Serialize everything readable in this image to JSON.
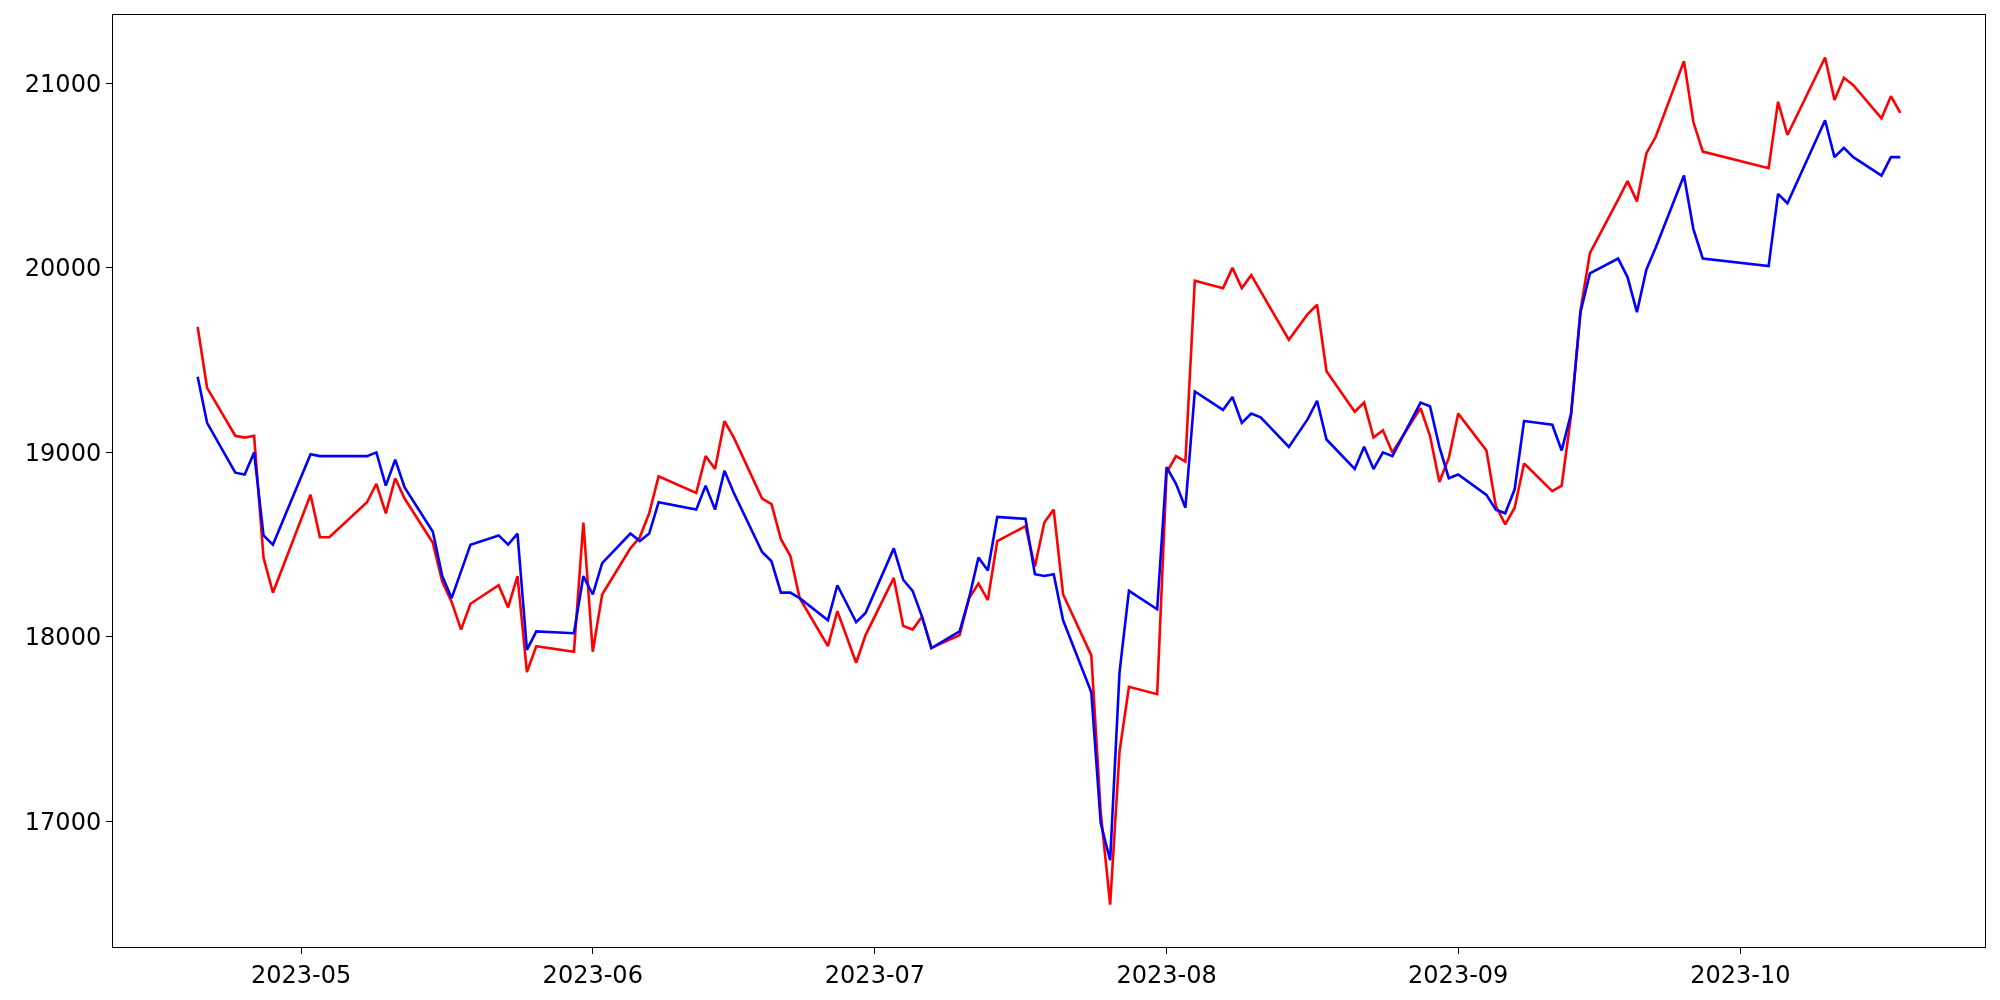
{
  "chart_data": {
    "type": "line",
    "xlim": [
      "2023-04-11",
      "2023-10-27"
    ],
    "xticks": [
      {
        "value": "2023-05-01",
        "label": "2023-05"
      },
      {
        "value": "2023-06-01",
        "label": "2023-06"
      },
      {
        "value": "2023-07-01",
        "label": "2023-07"
      },
      {
        "value": "2023-08-01",
        "label": "2023-08"
      },
      {
        "value": "2023-09-01",
        "label": "2023-09"
      },
      {
        "value": "2023-10-01",
        "label": "2023-10"
      }
    ],
    "ylim": [
      16320,
      21370
    ],
    "yticks": [
      17000,
      18000,
      19000,
      20000,
      21000
    ],
    "line_style": "solid",
    "series": [
      {
        "color": "#ff0000",
        "x": [
          "2023-04-20",
          "2023-04-21",
          "2023-04-24",
          "2023-04-25",
          "2023-04-26",
          "2023-04-27",
          "2023-04-28",
          "2023-05-02",
          "2023-05-03",
          "2023-05-04",
          "2023-05-08",
          "2023-05-09",
          "2023-05-10",
          "2023-05-11",
          "2023-05-12",
          "2023-05-15",
          "2023-05-16",
          "2023-05-17",
          "2023-05-18",
          "2023-05-19",
          "2023-05-22",
          "2023-05-23",
          "2023-05-24",
          "2023-05-25",
          "2023-05-26",
          "2023-05-30",
          "2023-05-31",
          "2023-06-01",
          "2023-06-02",
          "2023-06-05",
          "2023-06-06",
          "2023-06-07",
          "2023-06-08",
          "2023-06-12",
          "2023-06-13",
          "2023-06-14",
          "2023-06-15",
          "2023-06-16",
          "2023-06-19",
          "2023-06-20",
          "2023-06-21",
          "2023-06-22",
          "2023-06-23",
          "2023-06-26",
          "2023-06-27",
          "2023-06-29",
          "2023-06-30",
          "2023-07-03",
          "2023-07-04",
          "2023-07-05",
          "2023-07-06",
          "2023-07-07",
          "2023-07-10",
          "2023-07-11",
          "2023-07-12",
          "2023-07-13",
          "2023-07-14",
          "2023-07-17",
          "2023-07-18",
          "2023-07-19",
          "2023-07-20",
          "2023-07-21",
          "2023-07-24",
          "2023-07-25",
          "2023-07-26",
          "2023-07-27",
          "2023-07-28",
          "2023-07-31",
          "2023-08-01",
          "2023-08-02",
          "2023-08-03",
          "2023-08-04",
          "2023-08-07",
          "2023-08-08",
          "2023-08-09",
          "2023-08-10",
          "2023-08-14",
          "2023-08-16",
          "2023-08-17",
          "2023-08-18",
          "2023-08-21",
          "2023-08-22",
          "2023-08-23",
          "2023-08-24",
          "2023-08-25",
          "2023-08-28",
          "2023-08-29",
          "2023-08-30",
          "2023-08-31",
          "2023-09-01",
          "2023-09-04",
          "2023-09-05",
          "2023-09-06",
          "2023-09-07",
          "2023-09-08",
          "2023-09-11",
          "2023-09-12",
          "2023-09-13",
          "2023-09-14",
          "2023-09-15",
          "2023-09-18",
          "2023-09-19",
          "2023-09-20",
          "2023-09-21",
          "2023-09-22",
          "2023-09-25",
          "2023-09-26",
          "2023-09-27",
          "2023-10-04",
          "2023-10-05",
          "2023-10-06",
          "2023-10-10",
          "2023-10-11",
          "2023-10-12",
          "2023-10-13",
          "2023-10-16",
          "2023-10-17",
          "2023-10-18"
        ],
        "values": [
          19680,
          19350,
          19090,
          19080,
          19090,
          18430,
          18240,
          18770,
          18540,
          18540,
          18730,
          18830,
          18670,
          18860,
          18750,
          18510,
          18300,
          18190,
          18040,
          18180,
          18280,
          18160,
          18330,
          17810,
          17950,
          17920,
          18620,
          17920,
          18230,
          18480,
          18540,
          18670,
          18870,
          18780,
          18980,
          18910,
          19170,
          19080,
          18750,
          18720,
          18530,
          18440,
          18210,
          17950,
          18140,
          17860,
          18010,
          18320,
          18060,
          18040,
          18110,
          17940,
          18010,
          18210,
          18290,
          18200,
          18520,
          18600,
          18380,
          18620,
          18690,
          18230,
          17900,
          17050,
          16550,
          17380,
          17730,
          17690,
          18890,
          18980,
          18950,
          19930,
          19890,
          20000,
          19890,
          19960,
          19610,
          19750,
          19800,
          19440,
          19220,
          19270,
          19080,
          19120,
          19000,
          19240,
          19090,
          18840,
          18970,
          19210,
          19010,
          18710,
          18610,
          18700,
          18940,
          18790,
          18820,
          19200,
          19770,
          20080,
          20370,
          20470,
          20360,
          20620,
          20710,
          21120,
          20790,
          20630,
          20540,
          20900,
          20720,
          21140,
          20910,
          21030,
          20990,
          20810,
          20930,
          20840
        ]
      },
      {
        "color": "#0000ff",
        "x": [
          "2023-04-20",
          "2023-04-21",
          "2023-04-24",
          "2023-04-25",
          "2023-04-26",
          "2023-04-27",
          "2023-04-28",
          "2023-05-02",
          "2023-05-03",
          "2023-05-04",
          "2023-05-08",
          "2023-05-09",
          "2023-05-10",
          "2023-05-11",
          "2023-05-12",
          "2023-05-15",
          "2023-05-16",
          "2023-05-17",
          "2023-05-19",
          "2023-05-22",
          "2023-05-23",
          "2023-05-24",
          "2023-05-25",
          "2023-05-26",
          "2023-05-30",
          "2023-05-31",
          "2023-06-01",
          "2023-06-02",
          "2023-06-05",
          "2023-06-06",
          "2023-06-07",
          "2023-06-08",
          "2023-06-12",
          "2023-06-13",
          "2023-06-14",
          "2023-06-15",
          "2023-06-16",
          "2023-06-19",
          "2023-06-20",
          "2023-06-21",
          "2023-06-22",
          "2023-06-23",
          "2023-06-26",
          "2023-06-27",
          "2023-06-29",
          "2023-06-30",
          "2023-07-03",
          "2023-07-04",
          "2023-07-05",
          "2023-07-06",
          "2023-07-07",
          "2023-07-10",
          "2023-07-11",
          "2023-07-12",
          "2023-07-13",
          "2023-07-14",
          "2023-07-17",
          "2023-07-18",
          "2023-07-19",
          "2023-07-20",
          "2023-07-21",
          "2023-07-24",
          "2023-07-25",
          "2023-07-26",
          "2023-07-27",
          "2023-07-28",
          "2023-07-31",
          "2023-08-01",
          "2023-08-02",
          "2023-08-03",
          "2023-08-04",
          "2023-08-07",
          "2023-08-08",
          "2023-08-09",
          "2023-08-10",
          "2023-08-11",
          "2023-08-14",
          "2023-08-16",
          "2023-08-17",
          "2023-08-18",
          "2023-08-21",
          "2023-08-22",
          "2023-08-23",
          "2023-08-24",
          "2023-08-25",
          "2023-08-28",
          "2023-08-29",
          "2023-08-30",
          "2023-08-31",
          "2023-09-01",
          "2023-09-04",
          "2023-09-05",
          "2023-09-06",
          "2023-09-07",
          "2023-09-08",
          "2023-09-11",
          "2023-09-12",
          "2023-09-13",
          "2023-09-14",
          "2023-09-15",
          "2023-09-18",
          "2023-09-19",
          "2023-09-20",
          "2023-09-21",
          "2023-09-22",
          "2023-09-25",
          "2023-09-26",
          "2023-09-27",
          "2023-10-04",
          "2023-10-05",
          "2023-10-06",
          "2023-10-10",
          "2023-10-11",
          "2023-10-12",
          "2023-10-13",
          "2023-10-16",
          "2023-10-17",
          "2023-10-18"
        ],
        "values": [
          19410,
          19160,
          18890,
          18880,
          19000,
          18550,
          18500,
          18990,
          18980,
          18980,
          18980,
          19000,
          18820,
          18960,
          18810,
          18570,
          18330,
          18210,
          18500,
          18550,
          18500,
          18560,
          17930,
          18030,
          18020,
          18330,
          18230,
          18400,
          18560,
          18520,
          18560,
          18730,
          18690,
          18820,
          18690,
          18900,
          18780,
          18460,
          18410,
          18240,
          18240,
          18210,
          18090,
          18280,
          18080,
          18130,
          18480,
          18310,
          18250,
          18110,
          17940,
          18030,
          18210,
          18430,
          18360,
          18650,
          18640,
          18340,
          18330,
          18340,
          18090,
          17700,
          16990,
          16790,
          17810,
          18250,
          18150,
          18920,
          18830,
          18700,
          19330,
          19230,
          19300,
          19160,
          19210,
          19190,
          19030,
          19180,
          19280,
          19070,
          18910,
          19030,
          18910,
          19000,
          18980,
          19270,
          19250,
          19030,
          18860,
          18880,
          18770,
          18690,
          18670,
          18800,
          19170,
          19150,
          19010,
          19210,
          19760,
          19970,
          20050,
          19950,
          19760,
          19990,
          20110,
          20500,
          20210,
          20050,
          20010,
          20400,
          20350,
          20800,
          20600,
          20650,
          20600,
          20500,
          20600,
          20600
        ]
      }
    ]
  }
}
